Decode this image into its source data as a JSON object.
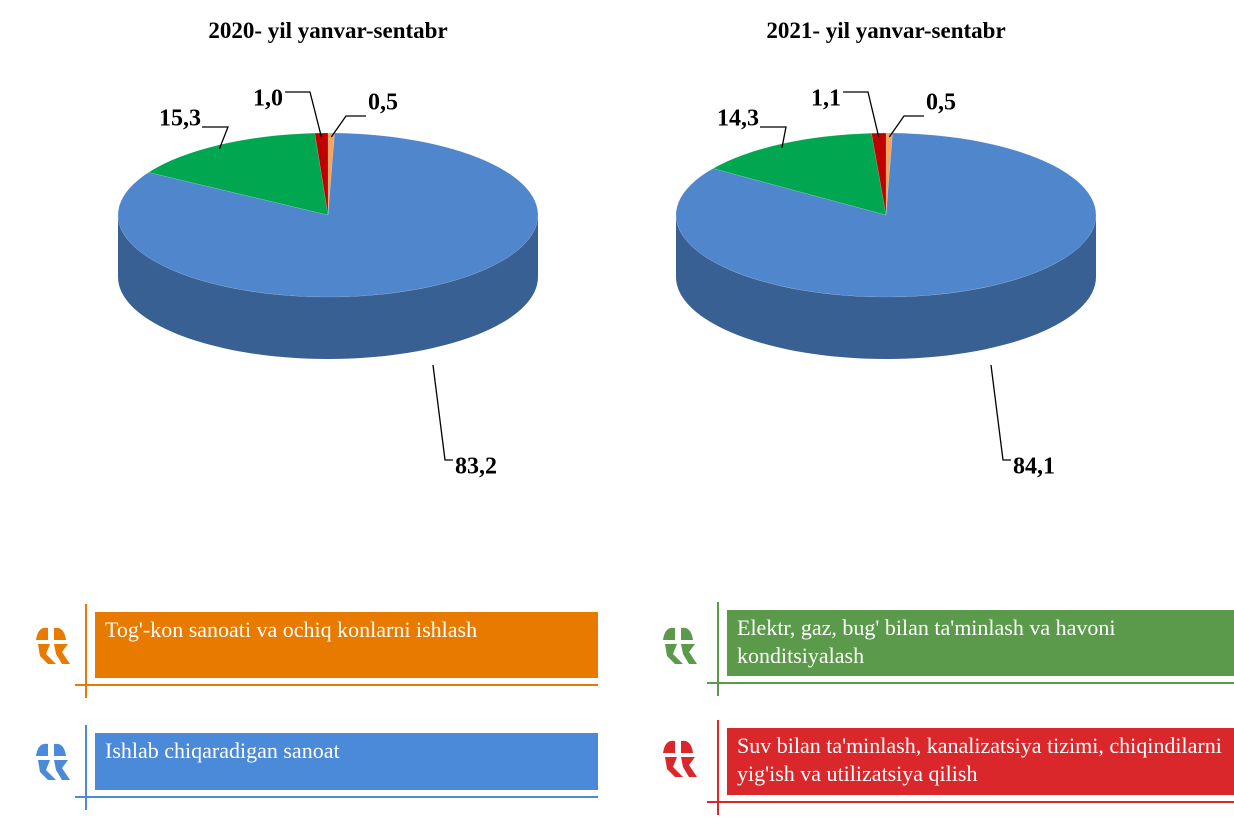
{
  "chart_data": [
    {
      "type": "pie",
      "title": "2020- yil yanvar-sentabr",
      "categories": [
        "Tog'-kon sanoati va ochiq konlarni ishlash",
        "Ishlab chiqaradigan sanoat",
        "Elektr, gaz, bug' bilan ta'minlash va havoni konditsiyalash",
        "Suv bilan ta'minlash, kanalizatsiya tizimi, chiqindilarni yig'ish va utilizatsiya qilish"
      ],
      "values": [
        0.5,
        83.2,
        15.3,
        1.0
      ],
      "value_labels": [
        "0,5",
        "83,2",
        "15,3",
        "1,0"
      ],
      "colors": [
        "#f7a35c",
        "#4f86cc",
        "#00a650",
        "#c00000"
      ]
    },
    {
      "type": "pie",
      "title": "2021- yil yanvar-sentabr",
      "values": [
        0.5,
        84.1,
        14.3,
        1.1
      ],
      "value_labels": [
        "0,5",
        "84,1",
        "14,3",
        "1,1"
      ],
      "colors": [
        "#f7a35c",
        "#4f86cc",
        "#00a650",
        "#c00000"
      ]
    }
  ],
  "legend": {
    "colors": [
      "#e87a00",
      "#4a8ad8",
      "#5b9a4a",
      "#d9272b"
    ]
  }
}
